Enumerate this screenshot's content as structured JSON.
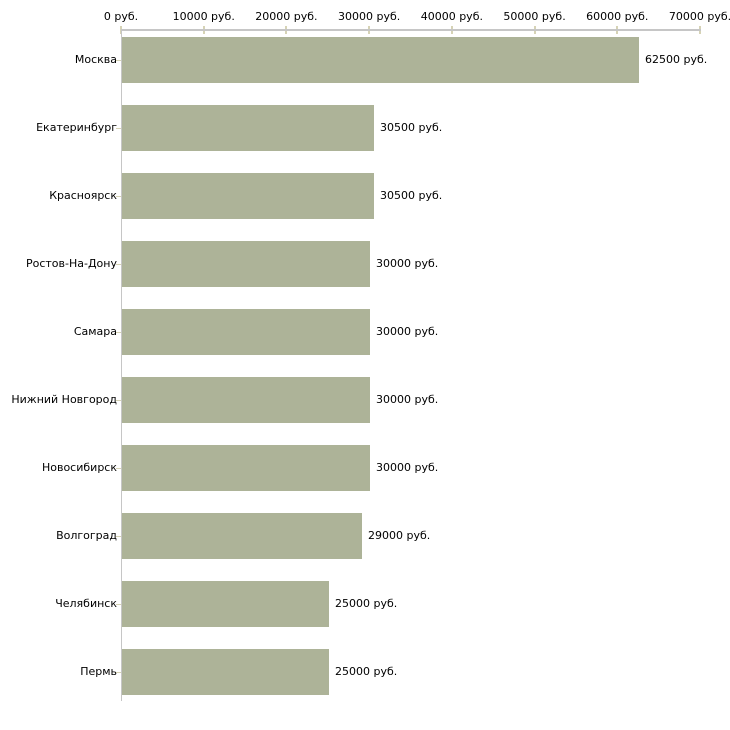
{
  "chart_data": {
    "type": "bar",
    "orientation": "horizontal",
    "title": "",
    "xlabel": "",
    "ylabel": "",
    "categories": [
      "Москва",
      "Екатеринбург",
      "Красноярск",
      "Ростов-На-Дону",
      "Самара",
      "Нижний Новгород",
      "Новосибирск",
      "Волгоград",
      "Челябинск",
      "Пермь"
    ],
    "values": [
      62500,
      30500,
      30500,
      30000,
      30000,
      30000,
      30000,
      29000,
      25000,
      25000
    ],
    "value_labels": [
      "62500 руб.",
      "30500 руб.",
      "30500 руб.",
      "30000 руб.",
      "30000 руб.",
      "30000 руб.",
      "30000 руб.",
      "29000 руб.",
      "25000 руб.",
      "25000 руб."
    ],
    "x_ticks": [
      0,
      10000,
      20000,
      30000,
      40000,
      50000,
      60000,
      70000
    ],
    "x_tick_labels": [
      "0 руб.",
      "10000 руб.",
      "20000 руб.",
      "30000 руб.",
      "40000 руб.",
      "50000 руб.",
      "60000 руб.",
      "70000 руб."
    ],
    "xlim": [
      0,
      70000
    ],
    "unit": "руб.",
    "grid": false,
    "legend": false,
    "colors": {
      "bar": "#adb398",
      "axis": "#c6c6c6",
      "tick": "#d6d3b6",
      "text": "#000000",
      "background": "#ffffff"
    }
  }
}
